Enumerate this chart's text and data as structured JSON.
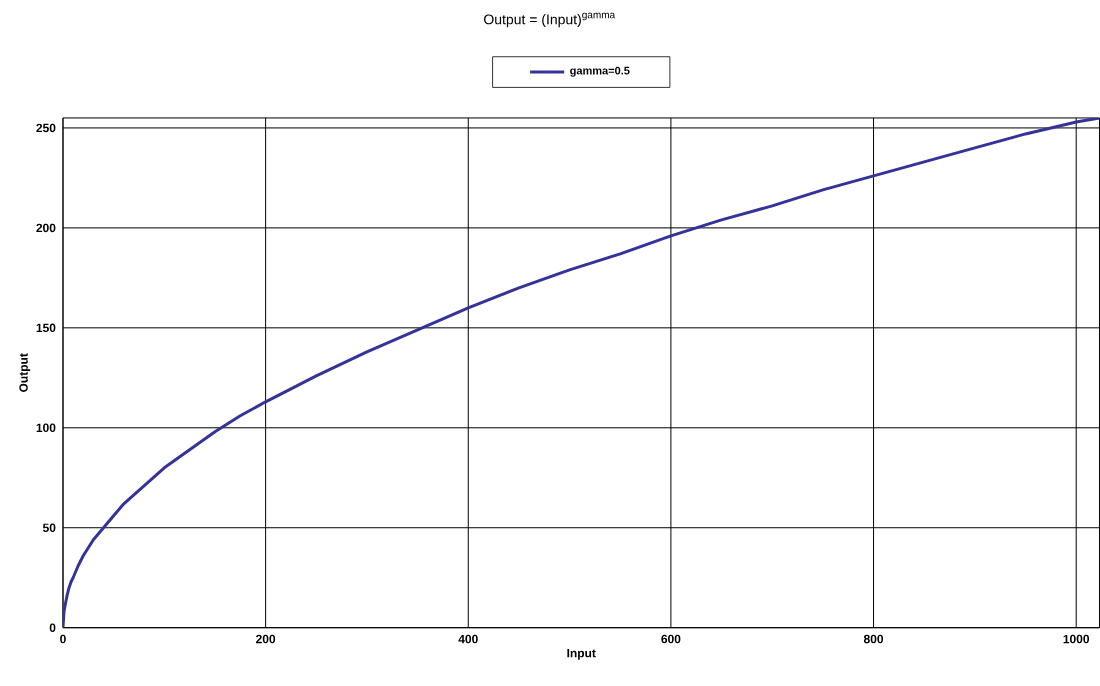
{
  "chart_data": {
    "type": "line",
    "title": "Output = (Input)$^{gamma}$",
    "xlabel": "Input",
    "ylabel": "Output",
    "x": [
      0,
      1,
      2,
      4,
      6,
      8,
      10,
      15,
      20,
      30,
      40,
      50,
      60,
      80,
      100,
      125,
      150,
      175,
      200,
      250,
      300,
      350,
      400,
      450,
      500,
      550,
      600,
      650,
      700,
      750,
      800,
      850,
      900,
      950,
      1000,
      1023
    ],
    "series": [
      {
        "name": "gamma=0.5",
        "color": "#333399",
        "values": [
          0,
          8,
          11,
          16,
          20,
          23,
          25,
          31,
          36,
          44,
          50,
          56,
          62,
          71,
          80,
          89,
          98,
          106,
          113,
          126,
          138,
          149,
          160,
          170,
          179,
          187,
          196,
          204,
          211,
          219,
          226,
          233,
          240,
          247,
          253,
          255
        ]
      }
    ],
    "xlim": [
      0,
      1023
    ],
    "ylim": [
      0,
      255
    ],
    "xticks": [
      0,
      200,
      400,
      600,
      800,
      1000
    ],
    "yticks": [
      0,
      50,
      100,
      150,
      200,
      250
    ],
    "grid": true,
    "legend": "top",
    "marker": "none",
    "line_style": "solid"
  }
}
